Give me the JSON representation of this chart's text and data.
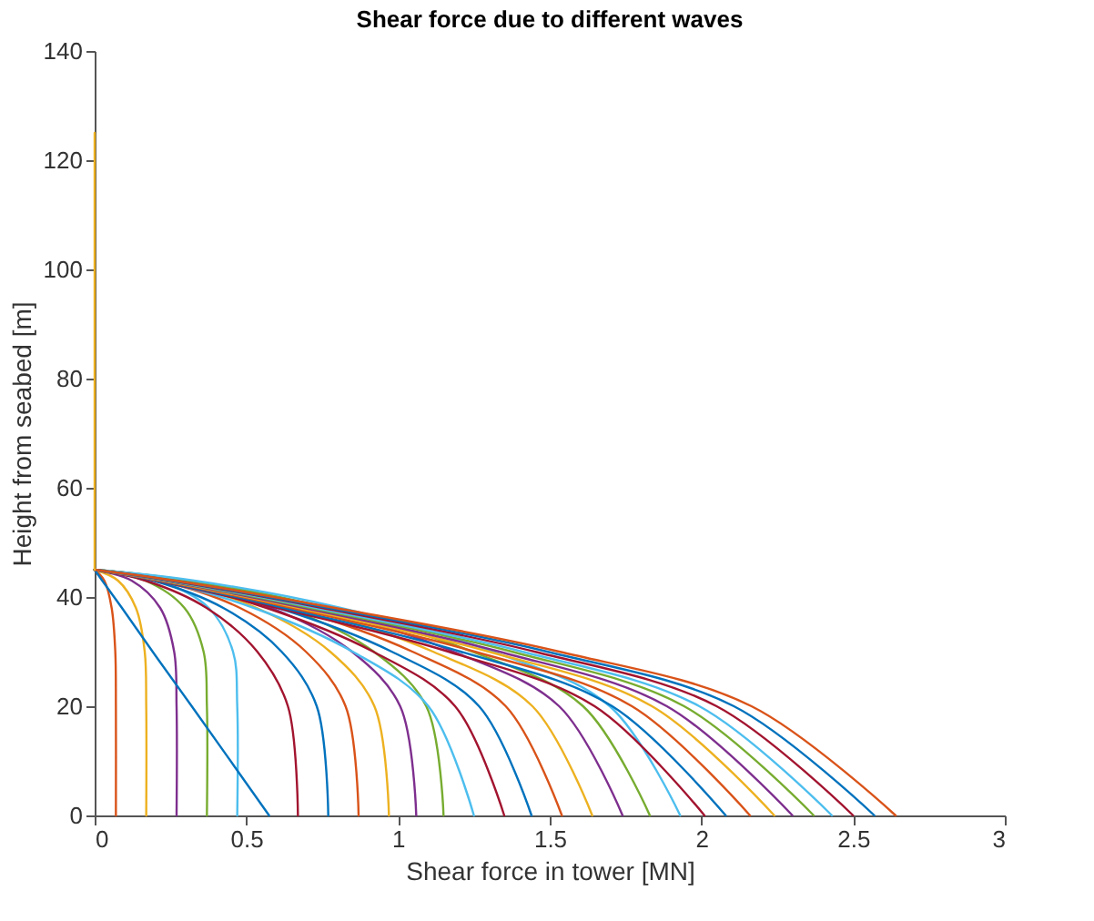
{
  "chart_data": {
    "type": "line",
    "title": "Shear force due to different waves",
    "xlabel": "Shear force in tower [MN]",
    "ylabel": "Height from seabed [m]",
    "xlim": [
      0,
      3
    ],
    "ylim": [
      0,
      140
    ],
    "xticks": [
      0,
      0.5,
      1,
      1.5,
      2,
      2.5,
      3
    ],
    "yticks": [
      0,
      20,
      40,
      60,
      80,
      100,
      120,
      140
    ],
    "grid": false,
    "legend": false,
    "line_style": "solid",
    "marker": "none",
    "series": [
      {
        "color": "#d95319",
        "x": [
          0.07,
          0.07,
          0.068,
          0.056,
          0.032,
          0
        ],
        "values": [
          0,
          20,
          30,
          38,
          43,
          45
        ]
      },
      {
        "color": "#edb120",
        "x": [
          0.17,
          0.17,
          0.165,
          0.136,
          0.077,
          0
        ],
        "values": [
          0,
          20,
          30,
          38,
          43,
          45
        ]
      },
      {
        "color": "#7e2f8e",
        "x": [
          0.27,
          0.27,
          0.262,
          0.216,
          0.122,
          0
        ],
        "values": [
          0,
          20,
          30,
          38,
          43,
          45
        ]
      },
      {
        "color": "#77ac30",
        "x": [
          0.37,
          0.37,
          0.359,
          0.296,
          0.167,
          0
        ],
        "values": [
          0,
          20,
          30,
          38,
          43,
          45
        ]
      },
      {
        "color": "#4dbeee",
        "x": [
          0.47,
          0.47,
          0.456,
          0.376,
          0.212,
          0
        ],
        "values": [
          0,
          20,
          30,
          38,
          43,
          45
        ]
      },
      {
        "color": "#0072bd",
        "x": [
          0.575,
          0.32,
          0.191,
          0.09,
          0.025,
          0
        ],
        "values": [
          0,
          20,
          30,
          38,
          43,
          45
        ]
      },
      {
        "color": "#a2142f",
        "x": [
          0.67,
          0.637,
          0.536,
          0.369,
          0.168,
          0
        ],
        "values": [
          0,
          20,
          30,
          38,
          43,
          45
        ]
      },
      {
        "color": "#0072bd",
        "x": [
          0.77,
          0.732,
          0.616,
          0.424,
          0.193,
          0
        ],
        "values": [
          0,
          20,
          30,
          38,
          43,
          45
        ]
      },
      {
        "color": "#d95319",
        "x": [
          0.87,
          0.827,
          0.696,
          0.479,
          0.218,
          0
        ],
        "values": [
          0,
          20,
          30,
          38,
          43,
          45
        ]
      },
      {
        "color": "#edb120",
        "x": [
          0.97,
          0.922,
          0.776,
          0.534,
          0.243,
          0
        ],
        "values": [
          0,
          20,
          30,
          38,
          43,
          45
        ]
      },
      {
        "color": "#7e2f8e",
        "x": [
          1.06,
          1.007,
          0.848,
          0.583,
          0.265,
          0
        ],
        "values": [
          0,
          20,
          30,
          38,
          43,
          45
        ]
      },
      {
        "color": "#77ac30",
        "x": [
          1.15,
          1.093,
          0.92,
          0.633,
          0.288,
          0
        ],
        "values": [
          0,
          20,
          30,
          38,
          43,
          45
        ]
      },
      {
        "color": "#4dbeee",
        "x": [
          1.25,
          1.1,
          0.85,
          0.525,
          0.213,
          0
        ],
        "values": [
          0,
          20,
          30,
          38,
          43,
          45
        ]
      },
      {
        "color": "#a2142f",
        "x": [
          1.35,
          1.188,
          0.918,
          0.567,
          0.23,
          0
        ],
        "values": [
          0,
          20,
          30,
          38,
          43,
          45
        ]
      },
      {
        "color": "#0072bd",
        "x": [
          1.44,
          1.267,
          0.979,
          0.605,
          0.245,
          0
        ],
        "values": [
          0,
          20,
          30,
          38,
          43,
          45
        ]
      },
      {
        "color": "#d95319",
        "x": [
          1.54,
          1.355,
          1.047,
          0.647,
          0.262,
          0
        ],
        "values": [
          0,
          20,
          30,
          38,
          43,
          45
        ]
      },
      {
        "color": "#edb120",
        "x": [
          1.64,
          1.443,
          1.115,
          0.689,
          0.279,
          0
        ],
        "values": [
          0,
          20,
          30,
          38,
          43,
          45
        ]
      },
      {
        "color": "#7e2f8e",
        "x": [
          1.74,
          1.531,
          1.183,
          0.731,
          0.296,
          0
        ],
        "values": [
          0,
          20,
          30,
          38,
          43,
          45
        ]
      },
      {
        "color": "#77ac30",
        "x": [
          1.83,
          1.61,
          1.244,
          0.769,
          0.311,
          0
        ],
        "values": [
          0,
          20,
          30,
          38,
          43,
          45
        ]
      },
      {
        "color": "#4dbeee",
        "x": [
          1.93,
          1.698,
          1.312,
          0.811,
          0.328,
          0
        ],
        "values": [
          0,
          20,
          30,
          38,
          43,
          45
        ]
      },
      {
        "color": "#a2142f",
        "x": [
          2.01,
          1.648,
          1.166,
          0.603,
          0.201,
          0
        ],
        "values": [
          0,
          20,
          30,
          38,
          43,
          45
        ]
      },
      {
        "color": "#0072bd",
        "x": [
          2.08,
          1.706,
          1.206,
          0.624,
          0.208,
          0
        ],
        "values": [
          0,
          20,
          30,
          38,
          43,
          45
        ]
      },
      {
        "color": "#d95319",
        "x": [
          2.16,
          1.771,
          1.253,
          0.648,
          0.216,
          0
        ],
        "values": [
          0,
          20,
          30,
          38,
          43,
          45
        ]
      },
      {
        "color": "#edb120",
        "x": [
          2.24,
          1.837,
          1.299,
          0.672,
          0.224,
          0
        ],
        "values": [
          0,
          20,
          30,
          38,
          43,
          45
        ]
      },
      {
        "color": "#7e2f8e",
        "x": [
          2.3,
          1.886,
          1.334,
          0.69,
          0.23,
          0
        ],
        "values": [
          0,
          20,
          30,
          38,
          43,
          45
        ]
      },
      {
        "color": "#77ac30",
        "x": [
          2.37,
          1.943,
          1.375,
          0.711,
          0.237,
          0
        ],
        "values": [
          0,
          20,
          30,
          38,
          43,
          45
        ]
      },
      {
        "color": "#4dbeee",
        "x": [
          2.43,
          1.993,
          1.409,
          0.729,
          0.243,
          0
        ],
        "values": [
          0,
          20,
          30,
          38,
          43,
          45
        ]
      },
      {
        "color": "#a2142f",
        "x": [
          2.5,
          2.05,
          1.45,
          0.75,
          0.25,
          0
        ],
        "values": [
          0,
          20,
          30,
          38,
          43,
          45
        ]
      },
      {
        "color": "#0072bd",
        "x": [
          2.57,
          2.107,
          1.491,
          0.771,
          0.257,
          0
        ],
        "values": [
          0,
          20,
          30,
          38,
          43,
          45
        ]
      },
      {
        "color": "#d95319",
        "x": [
          2.64,
          2.165,
          1.531,
          0.792,
          0.264,
          0
        ],
        "values": [
          0,
          20,
          30,
          38,
          43,
          45
        ]
      },
      {
        "color": "#edb120",
        "x": [
          0,
          0
        ],
        "values": [
          45,
          125
        ]
      }
    ]
  }
}
